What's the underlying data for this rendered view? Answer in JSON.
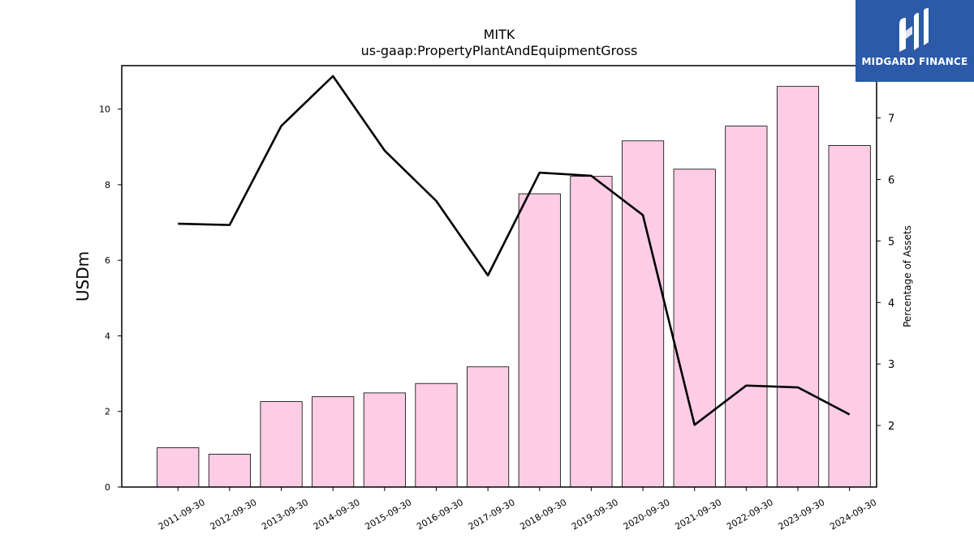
{
  "chart_data": {
    "type": "bar",
    "title": "MITK",
    "subtitle": "us-gaap:PropertyPlantAndEquipmentGross",
    "ylabel": "USDm",
    "y2label": "Percentage of Assets",
    "categories": [
      "2011-09-30",
      "2012-09-30",
      "2013-09-30",
      "2014-09-30",
      "2015-09-30",
      "2016-09-30",
      "2017-09-30",
      "2018-09-30",
      "2019-09-30",
      "2020-09-30",
      "2021-09-30",
      "2022-09-30",
      "2023-09-30",
      "2024-09-30"
    ],
    "series": [
      {
        "type": "bar",
        "axis": "left",
        "color": "#fccde5",
        "values": [
          1.04,
          0.87,
          2.26,
          2.39,
          2.49,
          2.74,
          3.18,
          7.76,
          8.22,
          9.16,
          8.41,
          9.55,
          10.6,
          9.04
        ]
      },
      {
        "type": "line",
        "axis": "right",
        "color": "#000000",
        "values": [
          5.28,
          5.26,
          6.87,
          7.68,
          6.47,
          5.65,
          4.44,
          6.11,
          6.06,
          5.42,
          2.01,
          2.65,
          2.62,
          2.18
        ]
      }
    ],
    "ylim": [
      0,
      11.15
    ],
    "yticks": [
      0,
      2,
      4,
      6,
      8,
      10
    ],
    "y2lim": [
      1.0,
      7.85
    ],
    "y2ticks": [
      2,
      3,
      4,
      5,
      6,
      7
    ],
    "grid": false
  },
  "logo": {
    "text": "MIDGARD FINANCE",
    "icon": "midgard-logo-icon"
  }
}
